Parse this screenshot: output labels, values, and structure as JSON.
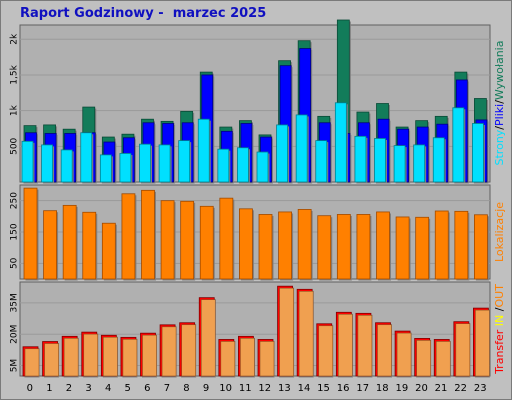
{
  "header": {
    "title": "Raport Godzinowy -  marzec 2025"
  },
  "colors": {
    "background": "#c0c0c0",
    "panel_bg": "#b0b0b0",
    "grid": "#9a9a9a",
    "strony": "#00e0ff",
    "pliki": "#0000ff",
    "wywolania": "#127c5a",
    "lokalizacje": "#ff8000",
    "transfer": "#ff0000",
    "transfer_fill": "#f0a050",
    "in": "#ffff00",
    "out": "#ff8000"
  },
  "chart_data": [
    {
      "type": "bar",
      "panel": "hits",
      "categories": [
        "0",
        "1",
        "2",
        "3",
        "4",
        "5",
        "6",
        "7",
        "8",
        "9",
        "10",
        "11",
        "12",
        "13",
        "14",
        "15",
        "16",
        "17",
        "18",
        "19",
        "20",
        "21",
        "22",
        "23"
      ],
      "ylabel_parts": [
        "Strony",
        "/",
        "Pliki",
        "/",
        "Wywołania"
      ],
      "yticks": [
        "500",
        "1k",
        "1,5k",
        "2k"
      ],
      "ylim": [
        0,
        2200
      ],
      "series": [
        {
          "name": "Wywołania",
          "values": [
            790,
            800,
            740,
            1050,
            630,
            670,
            880,
            850,
            990,
            1540,
            770,
            860,
            660,
            1700,
            1980,
            920,
            2270,
            980,
            1100,
            770,
            860,
            920,
            1540,
            1170
          ]
        },
        {
          "name": "Pliki",
          "values": [
            690,
            680,
            680,
            690,
            560,
            620,
            830,
            820,
            830,
            1500,
            710,
            820,
            630,
            1630,
            1870,
            830,
            680,
            830,
            880,
            740,
            770,
            810,
            1430,
            870
          ]
        },
        {
          "name": "Strony",
          "values": [
            570,
            520,
            450,
            690,
            380,
            400,
            530,
            520,
            580,
            880,
            460,
            480,
            420,
            800,
            940,
            580,
            1110,
            640,
            610,
            510,
            520,
            620,
            1040,
            820
          ]
        }
      ]
    },
    {
      "type": "bar",
      "panel": "sites",
      "categories": [
        "0",
        "1",
        "2",
        "3",
        "4",
        "5",
        "6",
        "7",
        "8",
        "9",
        "10",
        "11",
        "12",
        "13",
        "14",
        "15",
        "16",
        "17",
        "18",
        "19",
        "20",
        "21",
        "22",
        "23"
      ],
      "ylabel": "Lokalizacje",
      "yticks": [
        "50",
        "150",
        "250"
      ],
      "ylim": [
        0,
        300
      ],
      "series": [
        {
          "name": "Lokalizacje",
          "values": [
            290,
            218,
            235,
            213,
            178,
            272,
            283,
            250,
            248,
            232,
            258,
            224,
            206,
            214,
            222,
            202,
            206,
            206,
            214,
            198,
            197,
            217,
            216,
            205
          ]
        }
      ]
    },
    {
      "type": "bar",
      "panel": "transfer",
      "categories": [
        "0",
        "1",
        "2",
        "3",
        "4",
        "5",
        "6",
        "7",
        "8",
        "9",
        "10",
        "11",
        "12",
        "13",
        "14",
        "15",
        "16",
        "17",
        "18",
        "19",
        "20",
        "21",
        "22",
        "23"
      ],
      "ylabel_parts": [
        "Transfer",
        "IN",
        "OUT"
      ],
      "yticks": [
        "5M",
        "20M",
        "35M"
      ],
      "ylim": [
        0,
        45
      ],
      "series": [
        {
          "name": "Transfer",
          "values": [
            14.0,
            16.5,
            19.0,
            21.0,
            19.5,
            18.5,
            20.5,
            24.5,
            25.5,
            37.5,
            17.5,
            19.0,
            17.5,
            43.0,
            41.5,
            25.0,
            30.5,
            30.0,
            25.5,
            21.5,
            18.0,
            17.5,
            26.0,
            32.5
          ]
        }
      ]
    }
  ]
}
